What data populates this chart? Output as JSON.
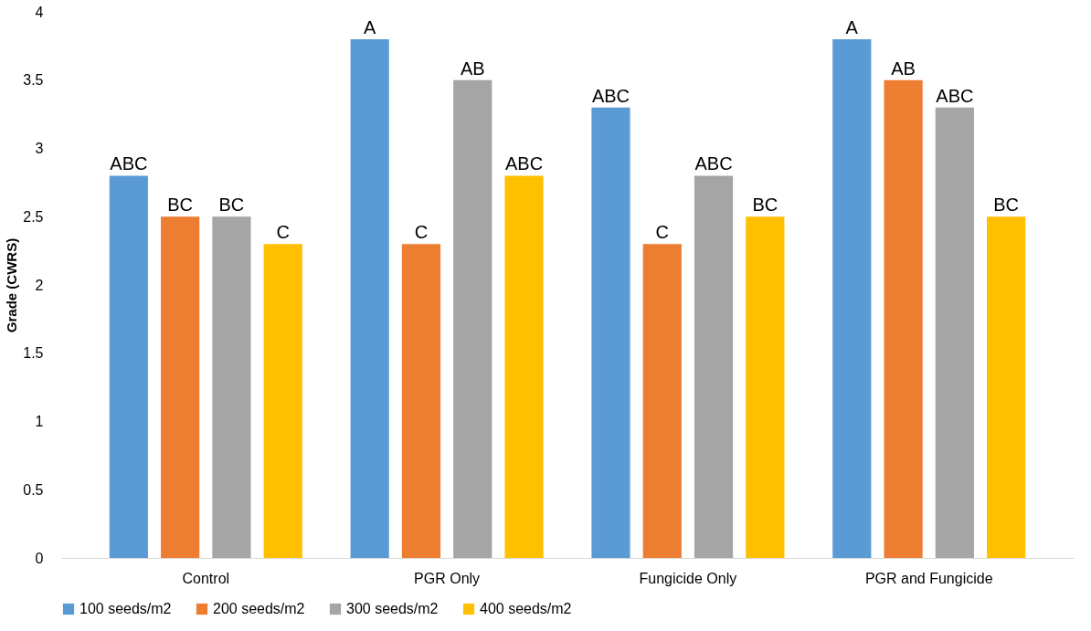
{
  "chart_data": {
    "type": "bar",
    "ylabel": "Grade (CWRS)",
    "categories": [
      "Control",
      "PGR Only",
      "Fungicide Only",
      "PGR and Fungicide"
    ],
    "series": [
      {
        "name": "100 seeds/m2",
        "color": "#5b9bd5",
        "values": [
          2.8,
          3.8,
          3.3,
          3.8
        ],
        "value_labels": [
          "ABC",
          "A",
          "ABC",
          "A"
        ]
      },
      {
        "name": "200 seeds/m2",
        "color": "#ed7d31",
        "values": [
          2.5,
          2.3,
          2.3,
          3.5
        ],
        "value_labels": [
          "BC",
          "C",
          "C",
          "AB"
        ]
      },
      {
        "name": "300 seeds/m2",
        "color": "#a5a5a5",
        "values": [
          2.5,
          3.5,
          2.8,
          3.3
        ],
        "value_labels": [
          "BC",
          "AB",
          "ABC",
          "ABC"
        ]
      },
      {
        "name": "400 seeds/m2",
        "color": "#ffc000",
        "values": [
          2.3,
          2.8,
          2.5,
          2.5
        ],
        "value_labels": [
          "C",
          "ABC",
          "BC",
          "BC"
        ]
      }
    ],
    "ylim": [
      0,
      4
    ],
    "yticks": [
      0,
      0.5,
      1,
      1.5,
      2,
      2.5,
      3,
      3.5,
      4
    ],
    "grid": false,
    "legend": "bottom"
  }
}
